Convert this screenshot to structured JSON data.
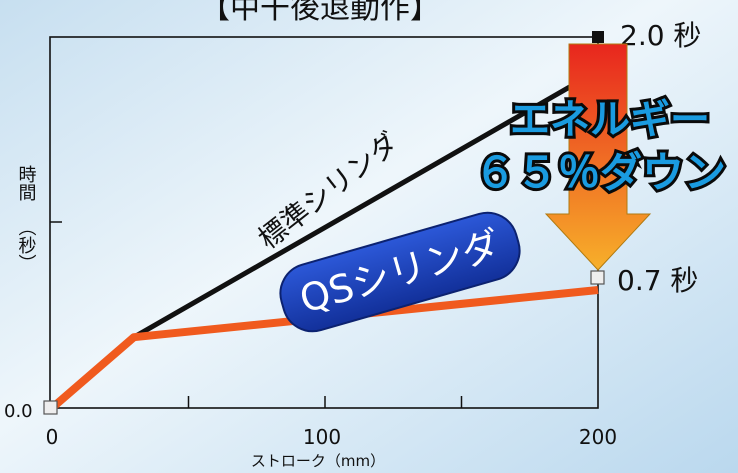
{
  "chart_data": {
    "type": "line",
    "title": "【中干後退動作】",
    "xlabel": "ストローク（mm）",
    "ylabel_top": "時間",
    "ylabel_bottom": "（秒）",
    "x_ticks": [
      "0",
      "100",
      "200"
    ],
    "y_tick_label": "0.0",
    "xlim": [
      0,
      200
    ],
    "ylim": [
      0,
      2.2
    ],
    "series": [
      {
        "name": "標準シリンダ",
        "color": "#111111",
        "points": [
          [
            0,
            0
          ],
          [
            30,
            0.42
          ],
          [
            200,
            2.0
          ]
        ]
      },
      {
        "name": "QSシリンダ",
        "color": "#f05a1e",
        "points": [
          [
            0,
            0
          ],
          [
            30,
            0.42
          ],
          [
            200,
            0.7
          ]
        ]
      }
    ],
    "end_labels": [
      "2.0 秒",
      "0.7 秒"
    ],
    "callout_line1": "エネルギー",
    "callout_line2": "６５％ダウン"
  },
  "colors": {
    "arrow_top": "#e8261e",
    "arrow_bottom": "#f7b02a",
    "badge": "#1a3fb8",
    "callout_fill": "#1a9be0"
  }
}
